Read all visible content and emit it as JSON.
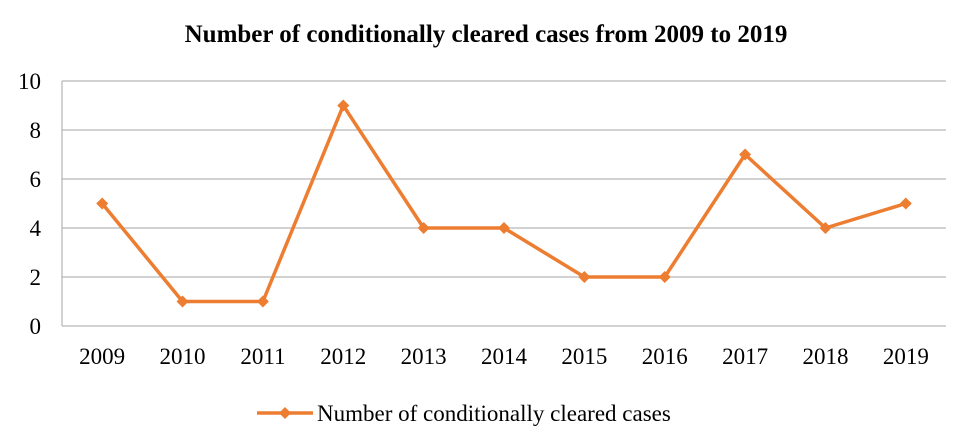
{
  "chart_data": {
    "type": "line",
    "title": "Number of conditionally cleared cases from 2009 to 2019",
    "xlabel": "",
    "ylabel": "",
    "categories": [
      "2009",
      "2010",
      "2011",
      "2012",
      "2013",
      "2014",
      "2015",
      "2016",
      "2017",
      "2018",
      "2019"
    ],
    "series": [
      {
        "name": "Number of conditionally cleared cases",
        "values": [
          5,
          1,
          1,
          9,
          4,
          4,
          2,
          2,
          7,
          4,
          5
        ],
        "color": "#ED7D31",
        "marker": "diamond"
      }
    ],
    "ylim": [
      0,
      10
    ],
    "yticks": [
      0,
      2,
      4,
      6,
      8,
      10
    ],
    "grid": true,
    "grid_color": "#A6A6A6",
    "legend_position": "bottom"
  }
}
